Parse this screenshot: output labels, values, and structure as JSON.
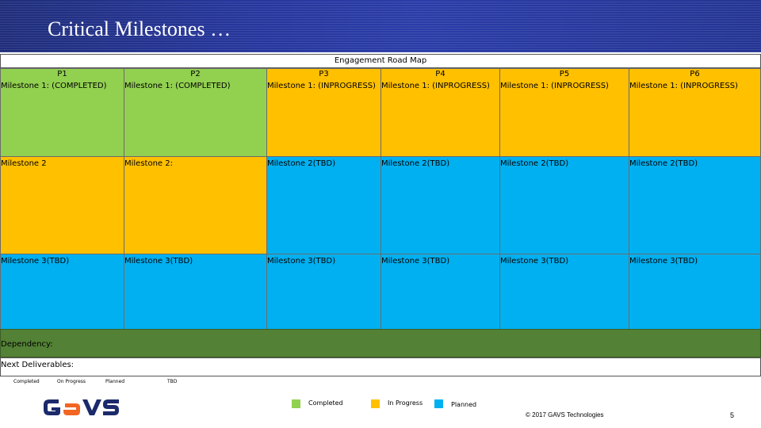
{
  "title": "Critical Milestones …",
  "roadmap": {
    "header": "Engagement Road Map",
    "periods": [
      {
        "label": "P1",
        "m1": "Milestone 1: (COMPLETED)",
        "m2": "Milestone 2",
        "m3": "Milestone 3(TBD)"
      },
      {
        "label": "P2",
        "m1": "Milestone 1: (COMPLETED)",
        "m2": "Milestone 2:",
        "m3": "Milestone 3(TBD)"
      },
      {
        "label": "P3",
        "m1": "Milestone 1: (INPROGRESS)",
        "m2": "Milestone 2(TBD)",
        "m3": "Milestone 3(TBD)"
      },
      {
        "label": "P4",
        "m1": "Milestone 1: (INPROGRESS)",
        "m2": "Milestone 2(TBD)",
        "m3": "Milestone 3(TBD)"
      },
      {
        "label": "P5",
        "m1": "Milestone 1: (INPROGRESS)",
        "m2": "Milestone 2(TBD)",
        "m3": "Milestone 3(TBD)"
      },
      {
        "label": "P6",
        "m1": "Milestone 1: (INPROGRESS)",
        "m2": "Milestone 2(TBD)",
        "m3": "Milestone 3(TBD)"
      }
    ],
    "dependency_label": "Dependency:",
    "next_label": "Next Deliverables:"
  },
  "key_row": {
    "completed": "Completed",
    "in_progress": "On Progress",
    "planned": "Planned",
    "tbd": "TBD"
  },
  "legend": {
    "completed": "Completed",
    "in_progress": "In Progress",
    "planned": "Planned"
  },
  "colors": {
    "completed": "#92d050",
    "in_progress": "#ffc000",
    "planned": "#00b0f0",
    "dependency": "#538135",
    "banner": "#25359a"
  },
  "logo_icon": "gavs-logo",
  "footer": {
    "copyright": "© 2017 GAVS Technologies",
    "page": "5"
  }
}
